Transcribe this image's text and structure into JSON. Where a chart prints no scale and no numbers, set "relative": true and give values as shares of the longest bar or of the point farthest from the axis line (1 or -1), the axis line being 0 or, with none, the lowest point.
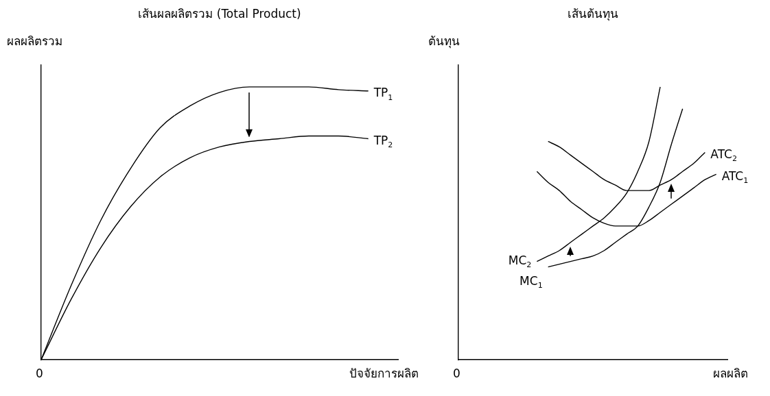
{
  "chart_data": [
    {
      "type": "line",
      "title": "เส้นผลผลิตรวม (Total Product)",
      "xlabel": "ปัจจัยการผลิต",
      "ylabel": "ผลผลิตรวม",
      "relative": true,
      "marker": "none",
      "annotations": [
        "0"
      ],
      "categories": [
        null,
        null,
        null,
        null,
        null,
        null,
        null,
        null,
        null,
        null,
        null,
        null,
        null
      ],
      "series": [
        {
          "name": "TP$_{1}$",
          "color": "#000000",
          "values": [
            0,
            0.27,
            0.51,
            0.7,
            0.85,
            0.93,
            0.98,
            1.0,
            1.0,
            1.0,
            0.99,
            0.985,
            null
          ]
        },
        {
          "name": "TP$_{2}$",
          "color": "#000000",
          "values": [
            0,
            0.22,
            0.41,
            0.56,
            0.67,
            0.74,
            0.78,
            0.8,
            0.81,
            0.82,
            0.82,
            0.81,
            null
          ]
        }
      ]
    },
    {
      "type": "line",
      "title": "เส้นต้นทุน",
      "xlabel": "ผลผลิต",
      "ylabel": "ต้นทุน",
      "relative": true,
      "marker": "none",
      "annotations": [
        "0"
      ],
      "categories": [
        null,
        null,
        null,
        null,
        null,
        null,
        null,
        null,
        null,
        null,
        null,
        null,
        null,
        null,
        null,
        null,
        null,
        null,
        null,
        null,
        null,
        null,
        null,
        null,
        null
      ],
      "series": [
        {
          "name": "ATC$_{2}$",
          "color": "#000000",
          "values": [
            null,
            null,
            null,
            null,
            null,
            null,
            null,
            null,
            0.8,
            0.78,
            0.75,
            0.72,
            0.69,
            0.66,
            0.64,
            0.62,
            0.62,
            0.62,
            0.64,
            0.66,
            0.69,
            0.72,
            0.76,
            null,
            null
          ]
        },
        {
          "name": "ATC$_{1}$",
          "color": "#000000",
          "values": [
            null,
            null,
            null,
            null,
            null,
            null,
            null,
            0.69,
            0.65,
            0.62,
            0.58,
            0.55,
            0.52,
            0.5,
            0.49,
            0.49,
            0.49,
            0.51,
            0.54,
            0.57,
            0.6,
            0.63,
            0.66,
            0.68,
            null
          ]
        },
        {
          "name": "MC$_{2}$",
          "color": "#000000",
          "values": [
            null,
            null,
            null,
            null,
            null,
            null,
            null,
            0.36,
            0.38,
            0.4,
            0.43,
            0.46,
            0.49,
            0.52,
            0.56,
            0.61,
            0.69,
            0.8,
            1.0,
            null,
            null,
            null,
            null,
            null,
            null
          ]
        },
        {
          "name": "MC$_{1}$",
          "color": "#000000",
          "values": [
            null,
            null,
            null,
            null,
            null,
            null,
            null,
            null,
            0.34,
            0.35,
            0.36,
            0.37,
            0.38,
            0.4,
            0.43,
            0.46,
            0.49,
            0.56,
            0.65,
            0.79,
            0.92,
            null,
            null,
            null,
            null
          ]
        }
      ]
    }
  ]
}
